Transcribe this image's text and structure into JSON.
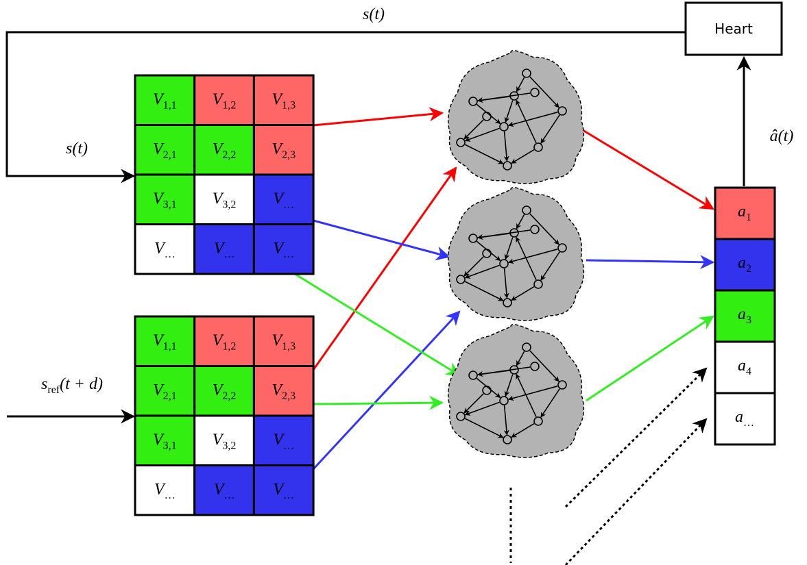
{
  "feedback_signal": "s(t)",
  "heart": "Heart",
  "input_signal": "s(t)",
  "reference_signal": {
    "main": "s",
    "sub": "ref",
    "rest": "(t + d)"
  },
  "output_signal": "â(t)",
  "grids": [
    {
      "cells": [
        [
          {
            "main": "V",
            "sub": "1,1"
          },
          {
            "main": "V",
            "sub": "1,2"
          },
          {
            "main": "V",
            "sub": "1,3"
          }
        ],
        [
          {
            "main": "V",
            "sub": "2,1"
          },
          {
            "main": "V",
            "sub": "2,2"
          },
          {
            "main": "V",
            "sub": "2,3"
          }
        ],
        [
          {
            "main": "V",
            "sub": "3,1"
          },
          {
            "main": "V",
            "sub": "3,2"
          },
          {
            "main": "V",
            "sub": "…"
          }
        ],
        [
          {
            "main": "V",
            "sub": "…"
          },
          {
            "main": "V",
            "sub": "…"
          },
          {
            "main": "V",
            "sub": "…"
          }
        ]
      ]
    },
    {
      "cells": [
        [
          {
            "main": "V",
            "sub": "1,1"
          },
          {
            "main": "V",
            "sub": "1,2"
          },
          {
            "main": "V",
            "sub": "1,3"
          }
        ],
        [
          {
            "main": "V",
            "sub": "2,1"
          },
          {
            "main": "V",
            "sub": "2,2"
          },
          {
            "main": "V",
            "sub": "2,3"
          }
        ],
        [
          {
            "main": "V",
            "sub": "3,1"
          },
          {
            "main": "V",
            "sub": "3,2"
          },
          {
            "main": "V",
            "sub": "…"
          }
        ],
        [
          {
            "main": "V",
            "sub": "…"
          },
          {
            "main": "V",
            "sub": "…"
          },
          {
            "main": "V",
            "sub": "…"
          }
        ]
      ]
    }
  ],
  "outputs": [
    {
      "main": "a",
      "sub": "1"
    },
    {
      "main": "a",
      "sub": "2"
    },
    {
      "main": "a",
      "sub": "3"
    },
    {
      "main": "a",
      "sub": "4"
    },
    {
      "main": "a",
      "sub": "…"
    }
  ]
}
